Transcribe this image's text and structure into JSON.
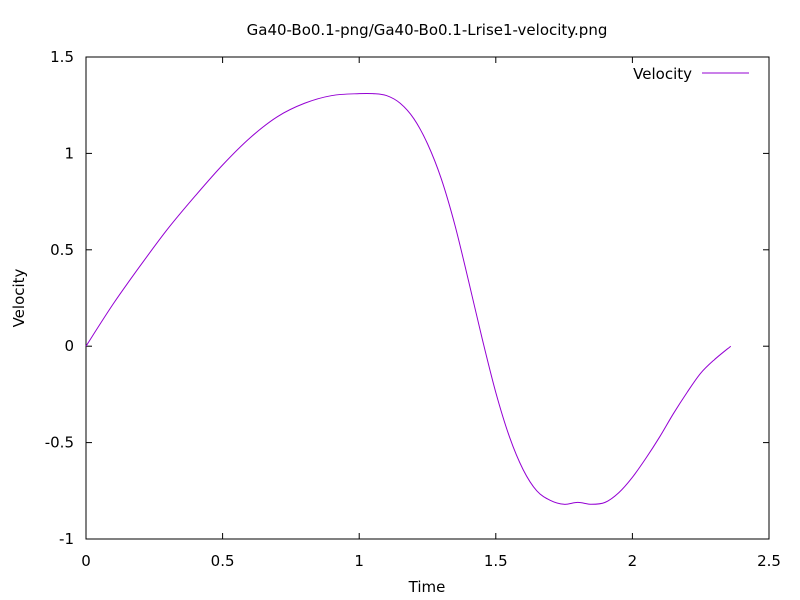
{
  "chart_data": {
    "type": "line",
    "title": "Ga40-Bo0.1-png/Ga40-Bo0.1-Lrise1-velocity.png",
    "xlabel": "Time",
    "ylabel": "Velocity",
    "xlim": [
      0,
      2.5
    ],
    "ylim": [
      -1,
      1.5
    ],
    "x_ticks": [
      "0",
      "0.5",
      "1",
      "1.5",
      "2",
      "2.5"
    ],
    "y_ticks": [
      "-1",
      "-0.5",
      "0",
      "0.5",
      "1",
      "1.5"
    ],
    "grid": false,
    "legend_position": "top-right",
    "series": [
      {
        "name": "Velocity",
        "color": "#9400d3",
        "x": [
          0,
          0.1,
          0.2,
          0.3,
          0.4,
          0.5,
          0.6,
          0.7,
          0.8,
          0.9,
          1.0,
          1.05,
          1.1,
          1.15,
          1.2,
          1.25,
          1.3,
          1.35,
          1.4,
          1.45,
          1.5,
          1.55,
          1.6,
          1.65,
          1.7,
          1.75,
          1.8,
          1.85,
          1.9,
          1.95,
          2.0,
          2.05,
          2.1,
          2.15,
          2.2,
          2.25,
          2.3,
          2.36
        ],
        "y": [
          0,
          0.22,
          0.42,
          0.61,
          0.78,
          0.94,
          1.08,
          1.19,
          1.26,
          1.3,
          1.31,
          1.31,
          1.3,
          1.26,
          1.18,
          1.05,
          0.87,
          0.63,
          0.34,
          0.04,
          -0.24,
          -0.47,
          -0.64,
          -0.75,
          -0.8,
          -0.82,
          -0.81,
          -0.82,
          -0.81,
          -0.76,
          -0.68,
          -0.58,
          -0.47,
          -0.35,
          -0.24,
          -0.14,
          -0.07,
          0
        ]
      }
    ]
  }
}
